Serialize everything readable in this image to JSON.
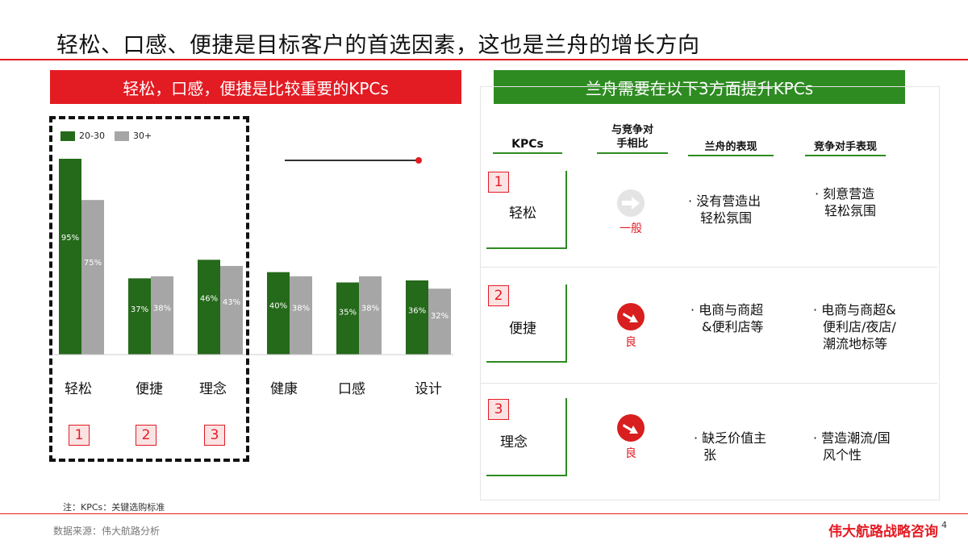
{
  "title": "轻松、口感、便捷是目标客户的首选因素，这也是兰舟的增长方向",
  "left_banner": "轻松，口感，便捷是比较重要的KPCs",
  "right_banner": "兰舟需要在以下3方面提升KPCs",
  "chart_data": {
    "type": "bar",
    "categories": [
      "轻松",
      "便捷",
      "理念",
      "健康",
      "口感",
      "设计"
    ],
    "series": [
      {
        "name": "20-30",
        "values": [
          95,
          37,
          46,
          40,
          35,
          36
        ],
        "labels": [
          "95%",
          "37%",
          "46%",
          "40%",
          "35%",
          "36%"
        ],
        "color": "#25691a"
      },
      {
        "name": "30+",
        "values": [
          75,
          38,
          43,
          38,
          38,
          32
        ],
        "labels": [
          "75%",
          "38%",
          "43%",
          "38%",
          "38%",
          "32%"
        ],
        "color": "#a6a6a6"
      }
    ]
  },
  "highlight_numbers": [
    "1",
    "2",
    "3"
  ],
  "table": {
    "headers": [
      "KPCs",
      "与竞争对手相比",
      "兰舟的表现",
      "竞争对手表现"
    ],
    "header_lines": [
      [
        "KPCs"
      ],
      [
        "与竞争对",
        "手相比"
      ],
      [
        "兰舟的表现"
      ],
      [
        "竞争对手表现"
      ]
    ],
    "rows": [
      {
        "num": "1",
        "name": "轻松",
        "rating": "一般",
        "lanzhou": [
          "· 没有营造出",
          "轻松氛围"
        ],
        "competitor": [
          "· 刻意营造",
          "轻松氛围"
        ]
      },
      {
        "num": "2",
        "name": "便捷",
        "rating": "良",
        "lanzhou": [
          "· 电商与商超",
          "&便利店等"
        ],
        "competitor": [
          "· 电商与商超&",
          "便利店/夜店/",
          "潮流地标等"
        ]
      },
      {
        "num": "3",
        "name": "理念",
        "rating": "良",
        "lanzhou": [
          "· 缺乏价值主",
          "张"
        ],
        "competitor": [
          "· 营造潮流/国",
          "风个性"
        ]
      }
    ]
  },
  "note": "注：KPCs：关键选购标准",
  "source": "数据来源：伟大航路分析",
  "brand": "伟大航路战略咨询",
  "page_number": "4",
  "colors": {
    "accent_red": "#e31b23",
    "green": "#2e8b22",
    "dark_green": "#25691a",
    "gray": "#a6a6a6"
  },
  "icons": {
    "rating_average": "arrow-right-icon",
    "rating_good": "arrow-down-right-icon"
  }
}
